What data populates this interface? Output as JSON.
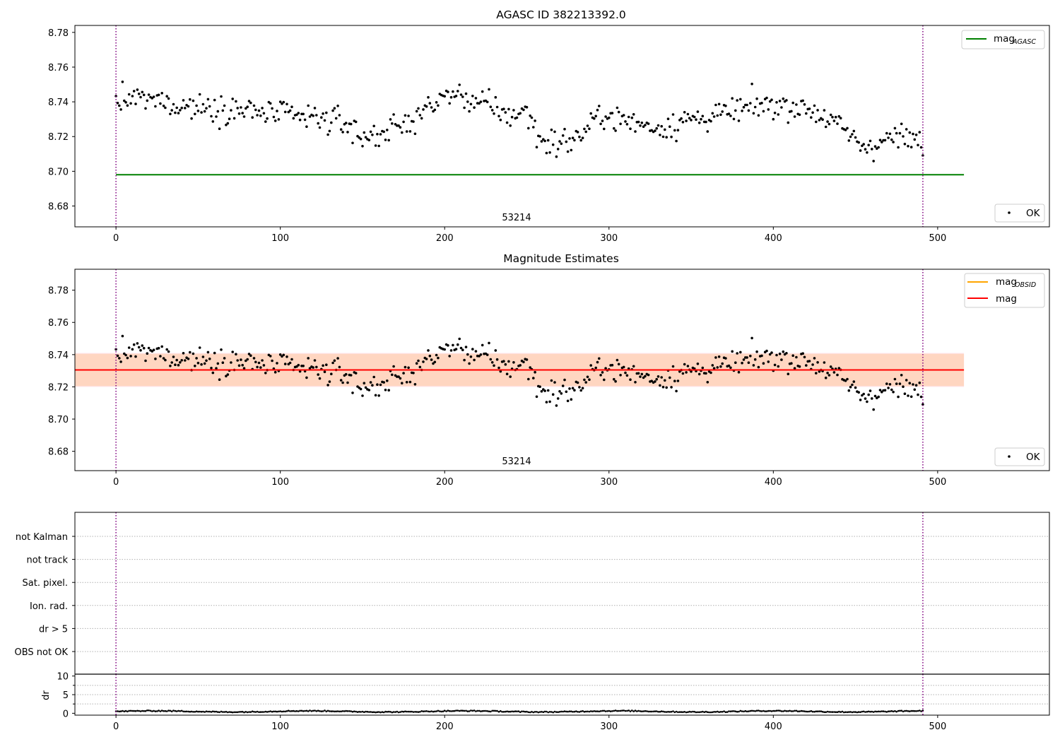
{
  "colors": {
    "points": "#000000",
    "mag_agasc": "#008000",
    "mag_obsid": "#ffa500",
    "mag": "#ff0000",
    "band_outer": "#ffc0cb",
    "band_inner": "#ffd2b4",
    "boundary": "#800080",
    "grid": "#b0b0b0"
  },
  "chart_data": [
    {
      "type": "scatter",
      "title": "AGASC ID 382213392.0",
      "xlim": [
        -25,
        568
      ],
      "ylim": [
        8.668,
        8.784
      ],
      "x_ticks": [
        0,
        100,
        200,
        300,
        400,
        500
      ],
      "y_ticks": [
        8.68,
        8.7,
        8.72,
        8.74,
        8.76,
        8.78
      ],
      "y_tick_labels": [
        "8.68",
        "8.70",
        "8.72",
        "8.74",
        "8.76",
        "8.78"
      ],
      "annotation": {
        "text": "53214",
        "x": 245
      },
      "boundaries": [
        0,
        491
      ],
      "lines": [
        {
          "name": "mag",
          "subscript": "AGASC",
          "y": 8.698,
          "x_end": 516,
          "color": "#008000"
        }
      ],
      "points_label": "OK"
    },
    {
      "type": "scatter",
      "title": "Magnitude Estimates",
      "xlim": [
        -25,
        568
      ],
      "ylim": [
        8.668,
        8.793
      ],
      "x_ticks": [
        0,
        100,
        200,
        300,
        400,
        500
      ],
      "y_ticks": [
        8.68,
        8.7,
        8.72,
        8.74,
        8.76,
        8.78
      ],
      "y_tick_labels": [
        "8.68",
        "8.70",
        "8.72",
        "8.74",
        "8.76",
        "8.78"
      ],
      "annotation": {
        "text": "53214",
        "x": 245
      },
      "boundaries": [
        0,
        491
      ],
      "lines": [
        {
          "name": "mag",
          "subscript": "OBSID",
          "y": 8.7305,
          "x_end": 516,
          "color": "#ffa500"
        },
        {
          "name": "mag",
          "subscript": "",
          "y": 8.7305,
          "x_end": 516,
          "color": "#ff0000"
        }
      ],
      "bands": [
        {
          "y0": 8.72,
          "y1": 8.741,
          "color": "#ffc0cb"
        },
        {
          "y0": 8.7205,
          "y1": 8.7405,
          "color": "#ffd2b4"
        }
      ],
      "points_label": "OK"
    },
    {
      "type": "scatter",
      "title": "",
      "xlim": [
        -25,
        568
      ],
      "flag_labels": [
        "not Kalman",
        "not track",
        "Sat. pixel.",
        "Ion. rad.",
        "dr > 5",
        "OBS not OK"
      ],
      "boundaries": [
        0,
        491
      ]
    },
    {
      "type": "scatter",
      "ylabel": "dr",
      "xlim": [
        -25,
        568
      ],
      "ylim": [
        -0.5,
        10.5
      ],
      "x_ticks": [
        0,
        100,
        200,
        300,
        400,
        500
      ],
      "y_ticks": [
        0,
        5,
        10
      ],
      "y_tick_labels": [
        "0",
        "5",
        "10"
      ],
      "boundaries": [
        0,
        491
      ],
      "dr_level": 0.5
    }
  ]
}
